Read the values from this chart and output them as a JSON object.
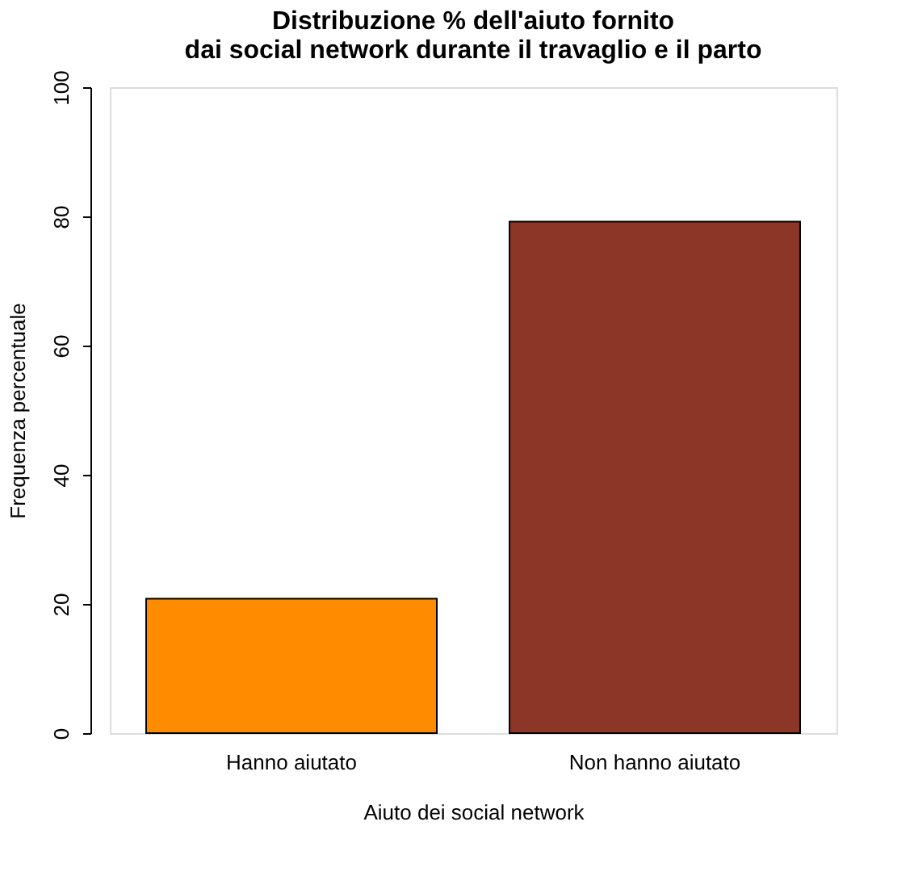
{
  "chart_data": {
    "type": "bar",
    "title": "Distribuzione % dell'aiuto fornito\ndai social network durante il travaglio e il parto",
    "xlabel": "Aiuto dei social network",
    "ylabel": "Frequenza percentuale",
    "categories": [
      "Hanno aiutato",
      "Non hanno aiutato"
    ],
    "values": [
      20.8,
      79.2
    ],
    "colors": [
      "#ff8c00",
      "#8b3626"
    ],
    "ylim": [
      0,
      100
    ],
    "yticks": [
      0,
      20,
      40,
      60,
      80,
      100
    ]
  }
}
